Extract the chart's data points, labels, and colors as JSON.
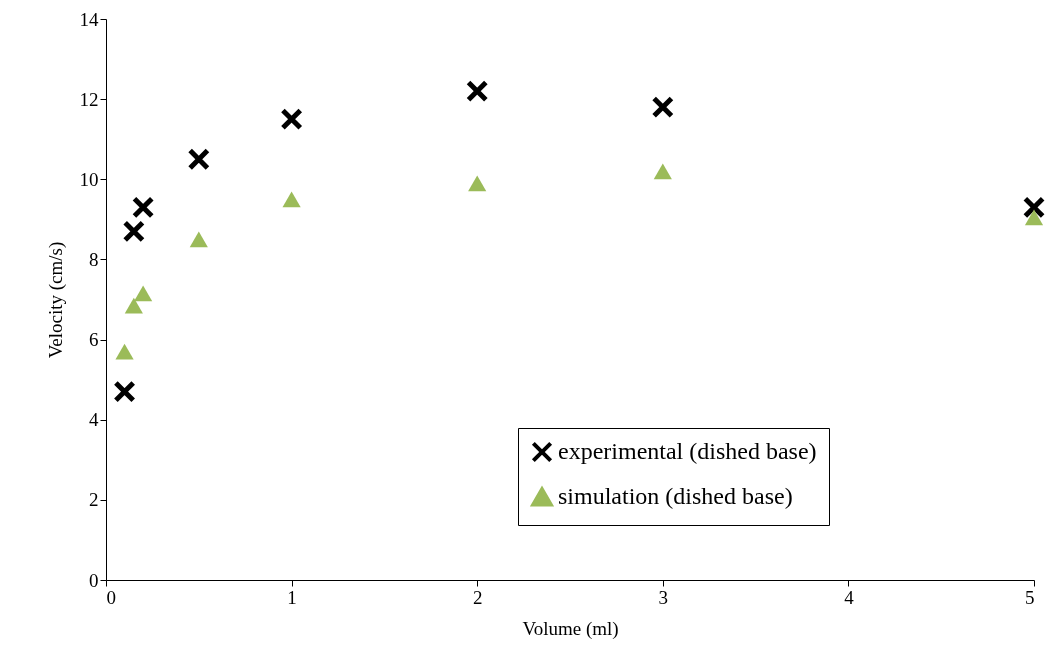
{
  "chart_data": {
    "type": "scatter",
    "xlabel": "Volume (ml)",
    "ylabel": "Velocity (cm/s)",
    "xlim": [
      0,
      5
    ],
    "xticks": [
      0,
      1,
      2,
      3,
      4,
      5
    ],
    "ylim": [
      0,
      14
    ],
    "yticks": [
      0,
      2,
      4,
      6,
      8,
      10,
      12,
      14
    ],
    "grid": false,
    "legend": "bottom right",
    "series": [
      {
        "name": "experimental (dished base)",
        "color": "#000000",
        "marker": "cross",
        "x": [
          0.1,
          0.15,
          0.2,
          0.5,
          1,
          2,
          3,
          5
        ],
        "values": [
          4.7,
          8.7,
          9.3,
          10.5,
          11.5,
          12.2,
          11.8,
          9.3
        ]
      },
      {
        "name": "simulation (dished base)",
        "color": "#9bbb59",
        "marker": "triangle",
        "x": [
          0.1,
          0.15,
          0.2,
          0.5,
          1,
          2,
          3,
          5
        ],
        "values": [
          5.7,
          6.85,
          7.15,
          8.5,
          9.5,
          9.9,
          10.2,
          9.05
        ]
      }
    ]
  }
}
